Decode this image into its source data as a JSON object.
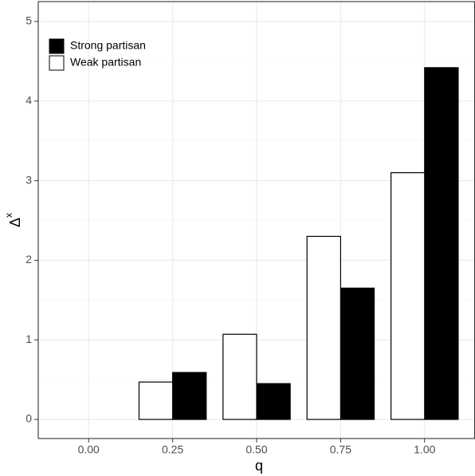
{
  "chart_data": {
    "type": "bar",
    "categories": [
      "0.00",
      "0.25",
      "0.50",
      "0.75",
      "1.00"
    ],
    "series": [
      {
        "name": "Strong partisan",
        "color": "#000000",
        "values": [
          0,
          0.59,
          0.45,
          1.65,
          4.42
        ]
      },
      {
        "name": "Weak partisan",
        "color": "#ffffff",
        "values": [
          0,
          0.47,
          1.07,
          2.3,
          3.1
        ]
      }
    ],
    "x_label": "q",
    "y_label": {
      "base": "Δ",
      "superscript": "x"
    },
    "ylim": [
      -0.24,
      5.25
    ],
    "yticks": [
      0,
      1,
      2,
      3,
      4,
      5
    ],
    "grid": true,
    "legend_position": "top-left"
  }
}
